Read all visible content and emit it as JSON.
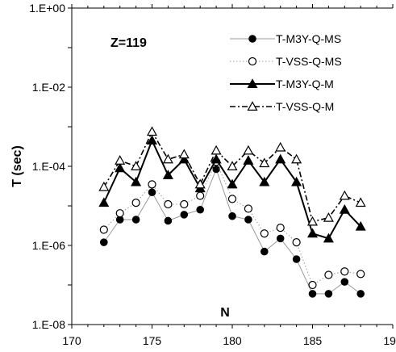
{
  "chart_data": {
    "type": "scatter",
    "yscale": "log",
    "xlim": [
      170,
      190
    ],
    "ylim": [
      1e-08,
      1
    ],
    "x_tick_labels": [
      "170",
      "175",
      "180",
      "185",
      "190"
    ],
    "y_tick_labels": [
      "1.E-08",
      "1.E-06",
      "1.E-04",
      "1.E-02",
      "1.E+00"
    ],
    "xlabel": "N",
    "ylabel": "T (sec)",
    "annotation": "Z=119",
    "legend_position": "top-right",
    "x": [
      172,
      173,
      174,
      175,
      176,
      177,
      178,
      179,
      180,
      181,
      182,
      183,
      184,
      185,
      186,
      187,
      188
    ],
    "series": [
      {
        "name": "T-M3Y-Q-MS",
        "marker": "filled-circle",
        "line": "thin-solid",
        "color": "#999999",
        "values": [
          1.2e-06,
          4.5e-06,
          4.5e-06,
          2.2e-05,
          4.2e-06,
          6e-06,
          8e-06,
          8.5e-05,
          5.5e-06,
          4.5e-06,
          7e-07,
          1.5e-06,
          4.5e-07,
          6e-08,
          6e-08,
          1.2e-07,
          6e-08
        ]
      },
      {
        "name": "T-VSS-Q-MS",
        "marker": "open-circle",
        "line": "dotted",
        "color": "#999999",
        "values": [
          2.5e-06,
          6.5e-06,
          1.2e-05,
          3.5e-05,
          1.1e-05,
          1.1e-05,
          1.8e-05,
          0.00013,
          1.5e-05,
          8.5e-06,
          2e-06,
          2.8e-06,
          1.2e-06,
          1e-07,
          1.8e-07,
          2.2e-07,
          1.9e-07
        ]
      },
      {
        "name": "T-M3Y-Q-M",
        "marker": "filled-triangle",
        "line": "thick-solid",
        "color": "#000000",
        "values": [
          1.2e-05,
          9e-05,
          4e-05,
          0.00045,
          6e-05,
          0.00015,
          2.8e-05,
          0.00015,
          3.5e-05,
          0.00014,
          4e-05,
          0.00015,
          4e-05,
          2e-06,
          1.5e-06,
          8e-06,
          3e-06
        ]
      },
      {
        "name": "T-VSS-Q-M",
        "marker": "open-triangle",
        "line": "dash-dot",
        "color": "#000000",
        "values": [
          3e-05,
          0.00014,
          0.0001,
          0.00075,
          0.00015,
          0.0002,
          3.5e-05,
          0.00025,
          0.0001,
          0.00025,
          0.00012,
          0.0003,
          0.00015,
          4e-06,
          5e-06,
          1.8e-05,
          1.2e-05
        ]
      }
    ]
  }
}
